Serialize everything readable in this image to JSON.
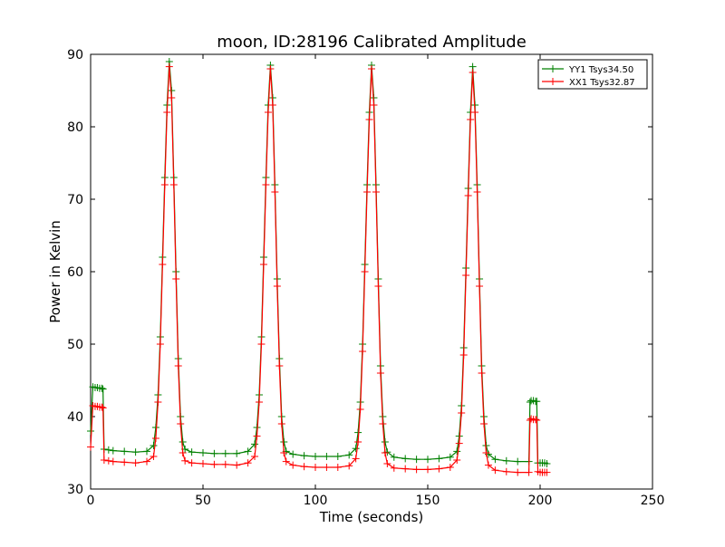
{
  "chart_data": {
    "type": "line",
    "title": "moon, ID:28196 Calibrated Amplitude",
    "xlabel": "Time (seconds)",
    "ylabel": "Power in Kelvin",
    "xlim": [
      0,
      250
    ],
    "ylim": [
      30,
      90
    ],
    "xticks": [
      0,
      50,
      100,
      150,
      200,
      250
    ],
    "yticks": [
      30,
      40,
      50,
      60,
      70,
      80,
      90
    ],
    "grid": false,
    "legend_position": "top-right",
    "marker": "plus",
    "series": [
      {
        "name": "YY1 Tsys34.50",
        "color": "#008000",
        "x": [
          0,
          1,
          2,
          3,
          4,
          5,
          5.5,
          6,
          8,
          10,
          15,
          20,
          25,
          28,
          29,
          30,
          31,
          32,
          33,
          34,
          35,
          36,
          37,
          38,
          39,
          40,
          41,
          42,
          45,
          50,
          55,
          60,
          65,
          70,
          73,
          74,
          75,
          76,
          77,
          78,
          79,
          80,
          81,
          82,
          83,
          84,
          85,
          86,
          87,
          90,
          95,
          100,
          105,
          110,
          115,
          118,
          119,
          120,
          121,
          122,
          123,
          124,
          125,
          126,
          127,
          128,
          129,
          130,
          131,
          132,
          135,
          140,
          145,
          150,
          155,
          160,
          163,
          164,
          165,
          166,
          167,
          168,
          169,
          170,
          171,
          172,
          173,
          174,
          175,
          176,
          177,
          180,
          185,
          190,
          195,
          195.5,
          196,
          197,
          198,
          198.5,
          199,
          200,
          201,
          202,
          203
        ],
        "y": [
          38,
          44.1,
          44,
          44,
          43.9,
          43.9,
          43.8,
          35.5,
          35.4,
          35.3,
          35.2,
          35.1,
          35.2,
          36,
          38.5,
          43,
          51,
          62,
          73,
          83,
          89,
          85,
          73,
          60,
          48,
          40,
          36.5,
          35.5,
          35.1,
          35,
          34.9,
          34.9,
          34.9,
          35.2,
          36.2,
          38.5,
          43,
          51,
          62,
          73,
          83,
          88.5,
          84,
          72,
          59,
          48,
          40,
          36.5,
          35.2,
          34.8,
          34.6,
          34.5,
          34.5,
          34.5,
          34.7,
          35.6,
          37.8,
          42,
          50,
          61,
          72,
          82,
          88.5,
          84,
          72,
          59,
          47,
          40,
          36.5,
          35.1,
          34.4,
          34.2,
          34.1,
          34.1,
          34.2,
          34.4,
          35.2,
          37.3,
          41.5,
          49.5,
          60.5,
          71.5,
          82,
          88.3,
          83,
          72,
          59,
          47,
          40,
          36,
          34.8,
          34.1,
          33.9,
          33.8,
          33.8,
          42,
          42.2,
          42.2,
          42.1,
          42.1,
          33.6,
          33.6,
          33.6,
          33.6,
          33.5
        ]
      },
      {
        "name": "XX1 Tsys32.87",
        "color": "#ff0000",
        "x": [
          0,
          1,
          2,
          3,
          4,
          5,
          5.5,
          6,
          8,
          10,
          15,
          20,
          25,
          28,
          29,
          30,
          31,
          32,
          33,
          34,
          35,
          36,
          37,
          38,
          39,
          40,
          41,
          42,
          45,
          50,
          55,
          60,
          65,
          70,
          73,
          74,
          75,
          76,
          77,
          78,
          79,
          80,
          81,
          82,
          83,
          84,
          85,
          86,
          87,
          90,
          95,
          100,
          105,
          110,
          115,
          118,
          119,
          120,
          121,
          122,
          123,
          124,
          125,
          126,
          127,
          128,
          129,
          130,
          131,
          132,
          135,
          140,
          145,
          150,
          155,
          160,
          163,
          164,
          165,
          166,
          167,
          168,
          169,
          170,
          171,
          172,
          173,
          174,
          175,
          176,
          177,
          180,
          185,
          190,
          195,
          195.5,
          196,
          197,
          198,
          198.5,
          199,
          200,
          201,
          202,
          203
        ],
        "y": [
          35.8,
          41.5,
          41.4,
          41.4,
          41.3,
          41.3,
          41.2,
          34,
          33.9,
          33.8,
          33.7,
          33.6,
          33.8,
          34.5,
          37,
          42,
          50,
          61,
          72,
          82,
          88.3,
          84,
          72,
          59,
          47,
          39,
          35,
          33.9,
          33.6,
          33.5,
          33.4,
          33.4,
          33.3,
          33.6,
          34.5,
          37.3,
          42,
          50,
          61,
          72,
          82,
          88,
          83,
          71,
          58,
          47,
          39,
          35,
          33.8,
          33.3,
          33.1,
          33,
          33,
          33,
          33.2,
          34.2,
          36.5,
          41,
          49,
          60,
          71,
          81,
          88,
          83,
          71,
          58,
          46,
          39,
          35,
          33.5,
          32.9,
          32.8,
          32.7,
          32.7,
          32.8,
          33,
          34,
          36.3,
          40.5,
          48.5,
          59.5,
          70.5,
          81,
          87.5,
          82,
          71,
          58,
          46,
          39,
          35,
          33.3,
          32.6,
          32.4,
          32.3,
          32.3,
          39.5,
          39.7,
          39.6,
          39.6,
          39.5,
          32.4,
          32.3,
          32.3,
          32.3,
          32.3
        ]
      }
    ]
  }
}
